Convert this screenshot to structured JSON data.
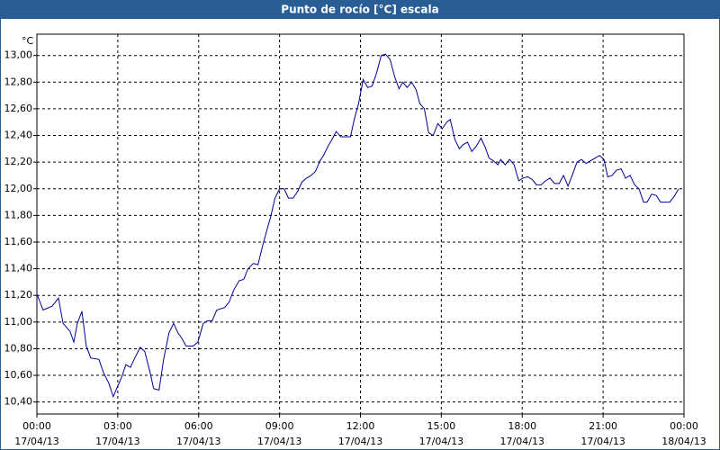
{
  "chart_data": {
    "type": "line",
    "title": "Punto de rocío [°C] escala",
    "y_label": "°C",
    "xlim": [
      0,
      24
    ],
    "ylim": [
      10.31,
      13.16
    ],
    "xticks": [
      {
        "value": 0,
        "label": "00:00"
      },
      {
        "value": 3,
        "label": "03:00"
      },
      {
        "value": 6,
        "label": "06:00"
      },
      {
        "value": 9,
        "label": "09:00"
      },
      {
        "value": 12,
        "label": "12:00"
      },
      {
        "value": 15,
        "label": "15:00"
      },
      {
        "value": 18,
        "label": "18:00"
      },
      {
        "value": 21,
        "label": "21:00"
      },
      {
        "value": 24,
        "label": "00:00"
      }
    ],
    "xtick_dates": [
      "17/04/13",
      "17/04/13",
      "17/04/13",
      "17/04/13",
      "17/04/13",
      "17/04/13",
      "17/04/13",
      "17/04/13",
      "18/04/13"
    ],
    "yticks": [
      {
        "value": 10.4,
        "label": "10,40"
      },
      {
        "value": 10.6,
        "label": "10,60"
      },
      {
        "value": 10.8,
        "label": "10,80"
      },
      {
        "value": 11.0,
        "label": "11,00"
      },
      {
        "value": 11.2,
        "label": "11,20"
      },
      {
        "value": 11.4,
        "label": "11,40"
      },
      {
        "value": 11.6,
        "label": "11,60"
      },
      {
        "value": 11.8,
        "label": "11,80"
      },
      {
        "value": 12.0,
        "label": "12,00"
      },
      {
        "value": 12.2,
        "label": "12,20"
      },
      {
        "value": 12.4,
        "label": "12,40"
      },
      {
        "value": 12.6,
        "label": "12,60"
      },
      {
        "value": 12.8,
        "label": "12,80"
      },
      {
        "value": 13.0,
        "label": "13,00"
      }
    ],
    "grid": true,
    "color": "#000099",
    "x": [
      0,
      0.23,
      0.57,
      0.8,
      0.97,
      1.23,
      1.37,
      1.5,
      1.67,
      1.83,
      2,
      2.3,
      2.47,
      2.67,
      2.83,
      3,
      3.13,
      3.3,
      3.47,
      3.63,
      3.83,
      4,
      4.2,
      4.33,
      4.53,
      4.7,
      4.9,
      5.07,
      5.23,
      5.4,
      5.53,
      5.8,
      5.97,
      6.17,
      6.33,
      6.5,
      6.67,
      6.97,
      7.13,
      7.3,
      7.5,
      7.67,
      7.83,
      8.03,
      8.2,
      8.37,
      8.53,
      8.67,
      8.83,
      9,
      9.17,
      9.33,
      9.5,
      9.67,
      9.83,
      10,
      10.17,
      10.33,
      10.5,
      10.63,
      10.8,
      10.97,
      11.1,
      11.27,
      11.43,
      11.63,
      11.77,
      11.93,
      12.1,
      12.27,
      12.43,
      12.6,
      12.77,
      12.93,
      13.1,
      13.27,
      13.43,
      13.57,
      13.73,
      13.9,
      14.07,
      14.2,
      14.37,
      14.53,
      14.7,
      14.87,
      15.03,
      15.2,
      15.33,
      15.5,
      15.67,
      15.8,
      15.97,
      16.13,
      16.3,
      16.47,
      16.63,
      16.77,
      16.93,
      17.1,
      17.2,
      17.37,
      17.53,
      17.7,
      17.87,
      18.03,
      18.2,
      18.37,
      18.53,
      18.7,
      18.87,
      19.03,
      19.2,
      19.37,
      19.53,
      19.7,
      19.87,
      20.03,
      20.2,
      20.37,
      20.53,
      20.7,
      20.87,
      21.03,
      21.17,
      21.33,
      21.5,
      21.67,
      21.83,
      22,
      22.17,
      22.33,
      22.5,
      22.63,
      22.8,
      22.97,
      23.13,
      23.3,
      23.47,
      23.63,
      23.8
    ],
    "values": [
      11.21,
      11.09,
      11.12,
      11.18,
      10.99,
      10.93,
      10.85,
      10.99,
      11.08,
      10.82,
      10.73,
      10.72,
      10.62,
      10.54,
      10.44,
      10.52,
      10.58,
      10.68,
      10.66,
      10.73,
      10.81,
      10.78,
      10.62,
      10.5,
      10.49,
      10.72,
      10.92,
      10.99,
      10.92,
      10.87,
      10.82,
      10.82,
      10.85,
      10.99,
      11.01,
      11.01,
      11.09,
      11.11,
      11.15,
      11.24,
      11.31,
      11.32,
      11.4,
      11.44,
      11.43,
      11.57,
      11.69,
      11.79,
      11.93,
      12,
      12,
      11.93,
      11.93,
      11.98,
      12.05,
      12.08,
      12.1,
      12.13,
      12.21,
      12.25,
      12.32,
      12.38,
      12.43,
      12.39,
      12.39,
      12.39,
      12.52,
      12.64,
      12.82,
      12.76,
      12.77,
      12.87,
      13,
      13.01,
      12.97,
      12.84,
      12.75,
      12.8,
      12.76,
      12.8,
      12.74,
      12.64,
      12.6,
      12.42,
      12.4,
      12.49,
      12.45,
      12.5,
      12.52,
      12.37,
      12.3,
      12.33,
      12.35,
      12.28,
      12.32,
      12.38,
      12.31,
      12.23,
      12.21,
      12.18,
      12.22,
      12.18,
      12.22,
      12.18,
      12.06,
      12.08,
      12.09,
      12.07,
      12.03,
      12.03,
      12.06,
      12.08,
      12.04,
      12.04,
      12.1,
      12.02,
      12.11,
      12.2,
      12.22,
      12.19,
      12.21,
      12.23,
      12.25,
      12.22,
      12.09,
      12.1,
      12.14,
      12.15,
      12.08,
      12.1,
      12.03,
      12,
      11.9,
      11.9,
      11.96,
      11.95,
      11.9,
      11.9,
      11.9,
      11.94,
      12
    ]
  }
}
